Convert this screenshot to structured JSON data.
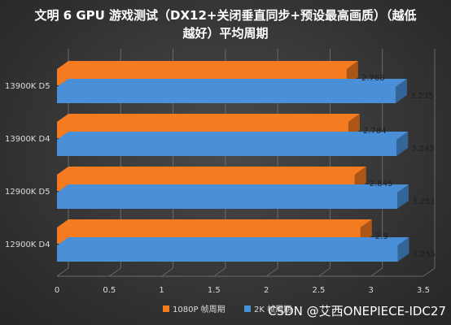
{
  "chart_data": {
    "type": "bar",
    "orientation": "horizontal",
    "style": "3d",
    "title": "文明 6 GPU 游戏测试（DX12+关闭垂直同步+预设最高画质）（越低越好）平均周期",
    "categories": [
      "13900K D5",
      "13900K D4",
      "12900K D5",
      "12900K D4"
    ],
    "series": [
      {
        "name": "1080P 帧周期",
        "values": [
          2.768,
          2.784,
          2.845,
          2.9
        ],
        "color": "#f47b20"
      },
      {
        "name": "2K 帧周期",
        "values": [
          3.235,
          3.245,
          3.251,
          3.255
        ],
        "color": "#4a90d9"
      }
    ],
    "data_labels": {
      "1080P": [
        "2.768",
        "2.784",
        "2.845",
        "2.9"
      ],
      "2K": [
        "3.235",
        "3.245",
        "3.251",
        "3.255"
      ]
    },
    "x_ticks": [
      "0",
      "0.5",
      "1",
      "1.5",
      "2",
      "2.5",
      "3",
      "3.5"
    ],
    "xlim": [
      0,
      3.5
    ],
    "grid": true,
    "legend_placement": "bottom-center"
  },
  "watermark": "CSDN @艾西ONEPIECE-IDC27"
}
